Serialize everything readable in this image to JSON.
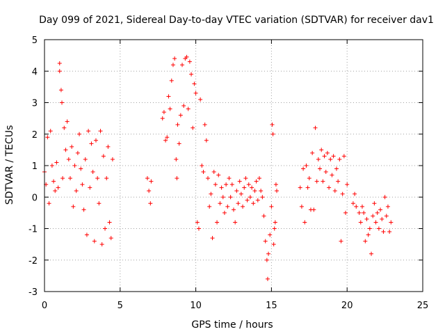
{
  "chart_data": {
    "type": "scatter",
    "title": "Day 099 of 2021, Sidereal Day-to-day VTEC variation (SDTVAR) for receiver dav1",
    "xlabel": "GPS time / hours",
    "ylabel": "SDTVAR / TECUs",
    "xlim": [
      0,
      25
    ],
    "ylim": [
      -3,
      5
    ],
    "xticks": [
      0,
      5,
      10,
      15,
      20,
      25
    ],
    "yticks": [
      -3,
      -2,
      -1,
      0,
      1,
      2,
      3,
      4,
      5
    ],
    "xtick_labels": [
      "0",
      "5",
      "10",
      "15",
      "20",
      "25"
    ],
    "ytick_labels": [
      "-3",
      "-2",
      "-1",
      "0",
      "1",
      "2",
      "3",
      "4",
      "5"
    ],
    "grid": true,
    "marker": "+",
    "series": [
      {
        "name": "dav1",
        "color": "#ff0000",
        "points": [
          [
            0.0,
            0.8
          ],
          [
            0.1,
            0.4
          ],
          [
            0.2,
            1.9
          ],
          [
            0.3,
            -0.2
          ],
          [
            0.4,
            2.1
          ],
          [
            0.5,
            1.0
          ],
          [
            0.6,
            0.5
          ],
          [
            0.7,
            0.2
          ],
          [
            0.8,
            1.1
          ],
          [
            0.9,
            0.3
          ],
          [
            1.0,
            4.25
          ],
          [
            1.0,
            4.0
          ],
          [
            1.1,
            3.4
          ],
          [
            1.15,
            3.0
          ],
          [
            1.2,
            0.6
          ],
          [
            1.3,
            2.2
          ],
          [
            1.4,
            1.5
          ],
          [
            1.5,
            2.4
          ],
          [
            1.6,
            1.2
          ],
          [
            1.7,
            0.6
          ],
          [
            1.8,
            1.6
          ],
          [
            1.9,
            -0.3
          ],
          [
            2.0,
            1.0
          ],
          [
            2.1,
            0.2
          ],
          [
            2.2,
            1.4
          ],
          [
            2.3,
            2.0
          ],
          [
            2.4,
            0.9
          ],
          [
            2.5,
            0.4
          ],
          [
            2.6,
            -0.4
          ],
          [
            2.7,
            1.2
          ],
          [
            2.8,
            -1.2
          ],
          [
            2.9,
            2.1
          ],
          [
            3.0,
            0.3
          ],
          [
            3.1,
            1.7
          ],
          [
            3.2,
            0.8
          ],
          [
            3.3,
            -1.4
          ],
          [
            3.4,
            1.8
          ],
          [
            3.5,
            0.6
          ],
          [
            3.6,
            -0.2
          ],
          [
            3.7,
            2.1
          ],
          [
            3.8,
            -1.5
          ],
          [
            3.9,
            1.3
          ],
          [
            4.0,
            -1.0
          ],
          [
            4.1,
            0.6
          ],
          [
            4.2,
            1.6
          ],
          [
            4.3,
            -0.8
          ],
          [
            4.4,
            -1.3
          ],
          [
            4.5,
            1.2
          ],
          [
            6.8,
            0.6
          ],
          [
            6.9,
            0.2
          ],
          [
            7.0,
            -0.2
          ],
          [
            7.05,
            0.5
          ],
          [
            7.8,
            2.5
          ],
          [
            7.9,
            2.7
          ],
          [
            8.0,
            1.8
          ],
          [
            8.1,
            1.9
          ],
          [
            8.2,
            3.2
          ],
          [
            8.3,
            2.8
          ],
          [
            8.4,
            3.7
          ],
          [
            8.5,
            4.2
          ],
          [
            8.6,
            4.4
          ],
          [
            8.7,
            1.2
          ],
          [
            8.75,
            0.6
          ],
          [
            8.8,
            2.3
          ],
          [
            8.9,
            1.7
          ],
          [
            9.0,
            2.6
          ],
          [
            9.1,
            4.2
          ],
          [
            9.2,
            2.9
          ],
          [
            9.3,
            4.4
          ],
          [
            9.4,
            4.45
          ],
          [
            9.5,
            2.8
          ],
          [
            9.6,
            4.3
          ],
          [
            9.7,
            3.9
          ],
          [
            9.8,
            2.2
          ],
          [
            9.9,
            3.6
          ],
          [
            10.0,
            3.3
          ],
          [
            10.1,
            -0.8
          ],
          [
            10.2,
            -1.0
          ],
          [
            10.3,
            3.1
          ],
          [
            10.4,
            1.0
          ],
          [
            10.5,
            0.8
          ],
          [
            10.6,
            2.3
          ],
          [
            10.7,
            1.8
          ],
          [
            10.8,
            0.6
          ],
          [
            10.9,
            -0.3
          ],
          [
            11.0,
            0.1
          ],
          [
            11.1,
            -1.3
          ],
          [
            11.2,
            0.8
          ],
          [
            11.3,
            0.4
          ],
          [
            11.4,
            -0.8
          ],
          [
            11.5,
            0.7
          ],
          [
            11.6,
            -0.2
          ],
          [
            11.7,
            0.3
          ],
          [
            11.8,
            0.0
          ],
          [
            11.9,
            -0.5
          ],
          [
            12.0,
            0.4
          ],
          [
            12.1,
            -0.3
          ],
          [
            12.2,
            0.6
          ],
          [
            12.3,
            0.0
          ],
          [
            12.4,
            0.4
          ],
          [
            12.5,
            -0.4
          ],
          [
            12.6,
            -0.8
          ],
          [
            12.7,
            0.2
          ],
          [
            12.8,
            -0.2
          ],
          [
            12.9,
            0.5
          ],
          [
            13.0,
            0.1
          ],
          [
            13.1,
            -0.3
          ],
          [
            13.2,
            0.3
          ],
          [
            13.3,
            0.6
          ],
          [
            13.4,
            -0.1
          ],
          [
            13.5,
            0.4
          ],
          [
            13.6,
            0.0
          ],
          [
            13.7,
            0.3
          ],
          [
            13.8,
            -0.2
          ],
          [
            13.9,
            0.2
          ],
          [
            14.0,
            0.5
          ],
          [
            14.1,
            -0.1
          ],
          [
            14.2,
            0.6
          ],
          [
            14.3,
            0.2
          ],
          [
            14.4,
            0.0
          ],
          [
            14.5,
            -0.6
          ],
          [
            14.6,
            -1.4
          ],
          [
            14.7,
            -2.0
          ],
          [
            14.75,
            -2.6
          ],
          [
            14.8,
            -1.8
          ],
          [
            14.9,
            -1.2
          ],
          [
            15.0,
            -0.3
          ],
          [
            15.05,
            2.3
          ],
          [
            15.1,
            2.0
          ],
          [
            15.15,
            -1.5
          ],
          [
            15.2,
            -1.0
          ],
          [
            15.25,
            -0.8
          ],
          [
            15.3,
            0.4
          ],
          [
            15.35,
            0.2
          ],
          [
            16.9,
            0.3
          ],
          [
            17.0,
            -0.3
          ],
          [
            17.1,
            0.9
          ],
          [
            17.2,
            -0.8
          ],
          [
            17.3,
            1.0
          ],
          [
            17.4,
            0.3
          ],
          [
            17.5,
            0.6
          ],
          [
            17.6,
            -0.4
          ],
          [
            17.7,
            1.4
          ],
          [
            17.8,
            -0.4
          ],
          [
            17.9,
            2.2
          ],
          [
            18.0,
            0.5
          ],
          [
            18.1,
            1.2
          ],
          [
            18.2,
            0.9
          ],
          [
            18.3,
            1.5
          ],
          [
            18.4,
            0.5
          ],
          [
            18.5,
            1.3
          ],
          [
            18.6,
            0.8
          ],
          [
            18.7,
            1.4
          ],
          [
            18.8,
            0.3
          ],
          [
            18.9,
            1.2
          ],
          [
            19.0,
            0.7
          ],
          [
            19.1,
            1.3
          ],
          [
            19.2,
            0.2
          ],
          [
            19.3,
            0.9
          ],
          [
            19.4,
            0.5
          ],
          [
            19.5,
            1.2
          ],
          [
            19.6,
            -1.4
          ],
          [
            19.7,
            0.1
          ],
          [
            19.8,
            1.3
          ],
          [
            19.9,
            -0.5
          ],
          [
            20.0,
            0.4
          ],
          [
            20.4,
            -0.2
          ],
          [
            20.5,
            0.1
          ],
          [
            20.6,
            -0.3
          ],
          [
            20.8,
            -0.5
          ],
          [
            20.9,
            -0.8
          ],
          [
            21.0,
            -0.3
          ],
          [
            21.1,
            -0.5
          ],
          [
            21.2,
            -1.4
          ],
          [
            21.3,
            -0.7
          ],
          [
            21.4,
            -1.2
          ],
          [
            21.5,
            -1.0
          ],
          [
            21.6,
            -1.8
          ],
          [
            21.7,
            -0.6
          ],
          [
            21.8,
            -0.2
          ],
          [
            21.9,
            -0.8
          ],
          [
            22.0,
            -0.5
          ],
          [
            22.1,
            -1.0
          ],
          [
            22.2,
            -0.4
          ],
          [
            22.3,
            -0.7
          ],
          [
            22.4,
            -1.1
          ],
          [
            22.5,
            0.0
          ],
          [
            22.6,
            -0.6
          ],
          [
            22.7,
            -0.3
          ],
          [
            22.8,
            -1.1
          ],
          [
            22.9,
            -0.8
          ]
        ]
      }
    ]
  }
}
